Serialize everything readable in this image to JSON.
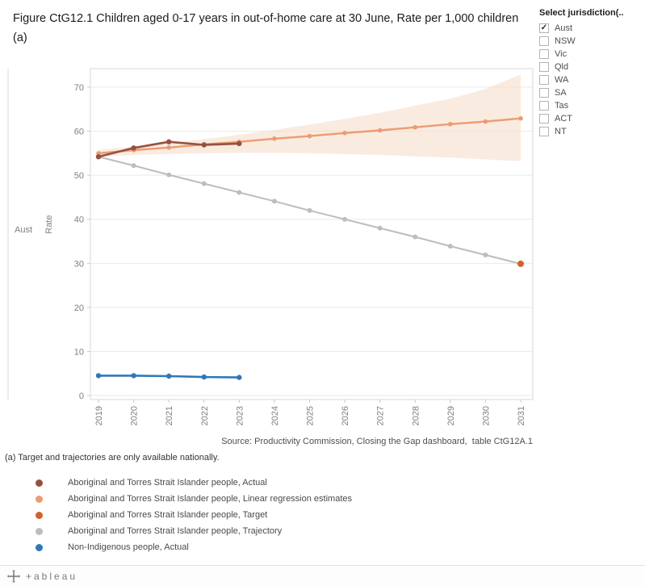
{
  "title": "Figure CtG12.1 Children aged 0-17 years in out-of-home care at 30 June, Rate per 1,000 children (a)",
  "filter": {
    "title": "Select jurisdiction(..",
    "options": [
      {
        "label": "Aust",
        "checked": true
      },
      {
        "label": "NSW",
        "checked": false
      },
      {
        "label": "Vic",
        "checked": false
      },
      {
        "label": "Qld",
        "checked": false
      },
      {
        "label": "WA",
        "checked": false
      },
      {
        "label": "SA",
        "checked": false
      },
      {
        "label": "Tas",
        "checked": false
      },
      {
        "label": "ACT",
        "checked": false
      },
      {
        "label": "NT",
        "checked": false
      }
    ]
  },
  "colors": {
    "actual": "#955140",
    "regression": "#EB9C71",
    "target": "#D1622B",
    "trajectory": "#BDBDBD",
    "non_indigenous": "#2E78B8",
    "band": "#F6DECC"
  },
  "chart_data": {
    "type": "line",
    "title": "Figure CtG12.1 Children aged 0-17 years in out-of-home care at 30 June, Rate per 1,000 children (a)",
    "row_label": "Aust",
    "ylabel": "Rate",
    "x": [
      2019,
      2020,
      2021,
      2022,
      2023,
      2024,
      2025,
      2026,
      2027,
      2028,
      2029,
      2030,
      2031
    ],
    "yticks": [
      0,
      10,
      20,
      30,
      40,
      50,
      60,
      70
    ],
    "ylim": [
      0,
      74
    ],
    "legend_position": "bottom",
    "grid": "horizontal",
    "series": [
      {
        "name": "Aboriginal and Torres Strait Islander people, Actual",
        "color_key": "actual",
        "x": [
          2019,
          2020,
          2021,
          2022,
          2023
        ],
        "values": [
          54.2,
          56.2,
          57.6,
          56.9,
          57.2
        ]
      },
      {
        "name": "Aboriginal and Torres Strait Islander people, Linear regression estimates",
        "color_key": "regression",
        "x": [
          2019,
          2020,
          2021,
          2022,
          2023,
          2024,
          2025,
          2026,
          2027,
          2028,
          2029,
          2030,
          2031
        ],
        "values": [
          55.0,
          55.7,
          56.3,
          57.0,
          57.6,
          58.3,
          58.9,
          59.6,
          60.2,
          60.9,
          61.6,
          62.2,
          62.9
        ]
      },
      {
        "name": "Aboriginal and Torres Strait Islander people, Target",
        "color_key": "target",
        "x": [
          2031
        ],
        "values": [
          29.9
        ]
      },
      {
        "name": "Aboriginal and Torres Strait Islander people, Trajectory",
        "color_key": "trajectory",
        "x": [
          2019,
          2020,
          2021,
          2022,
          2023,
          2024,
          2025,
          2026,
          2027,
          2028,
          2029,
          2030,
          2031
        ],
        "values": [
          54.2,
          52.2,
          50.1,
          48.1,
          46.1,
          44.1,
          42.0,
          40.0,
          38.0,
          36.0,
          33.9,
          31.9,
          29.9
        ]
      },
      {
        "name": "Non-Indigenous people, Actual",
        "color_key": "non_indigenous",
        "x": [
          2019,
          2020,
          2021,
          2022,
          2023
        ],
        "values": [
          4.5,
          4.5,
          4.4,
          4.2,
          4.1
        ]
      }
    ],
    "band": {
      "color_key": "band",
      "x": [
        2019,
        2020,
        2021,
        2022,
        2023,
        2024,
        2025,
        2026,
        2027,
        2028,
        2029,
        2030,
        2031
      ],
      "lower": [
        54.3,
        54.6,
        54.8,
        55.0,
        55.1,
        55.1,
        55.0,
        54.8,
        54.6,
        54.3,
        54.0,
        53.6,
        53.2
      ],
      "upper": [
        55.8,
        56.5,
        57.3,
        58.2,
        59.2,
        60.3,
        61.5,
        62.8,
        64.2,
        65.8,
        67.4,
        69.6,
        72.9
      ]
    }
  },
  "legend": [
    {
      "label": "Aboriginal and Torres Strait Islander people, Actual",
      "color_key": "actual"
    },
    {
      "label": "Aboriginal and Torres Strait Islander people, Linear regression estimates",
      "color_key": "regression"
    },
    {
      "label": "Aboriginal and Torres Strait Islander people, Target",
      "color_key": "target"
    },
    {
      "label": "Aboriginal and Torres Strait Islander people, Trajectory",
      "color_key": "trajectory"
    },
    {
      "label": "Non-Indigenous people, Actual",
      "color_key": "non_indigenous"
    }
  ],
  "notes": {
    "source": "Source: Productivity Commission, Closing the Gap dashboard,  table CtG12A.1",
    "footnote": "(a) Target and trajectories are only available nationally."
  },
  "footer": {
    "brand_text": "+ableau"
  }
}
